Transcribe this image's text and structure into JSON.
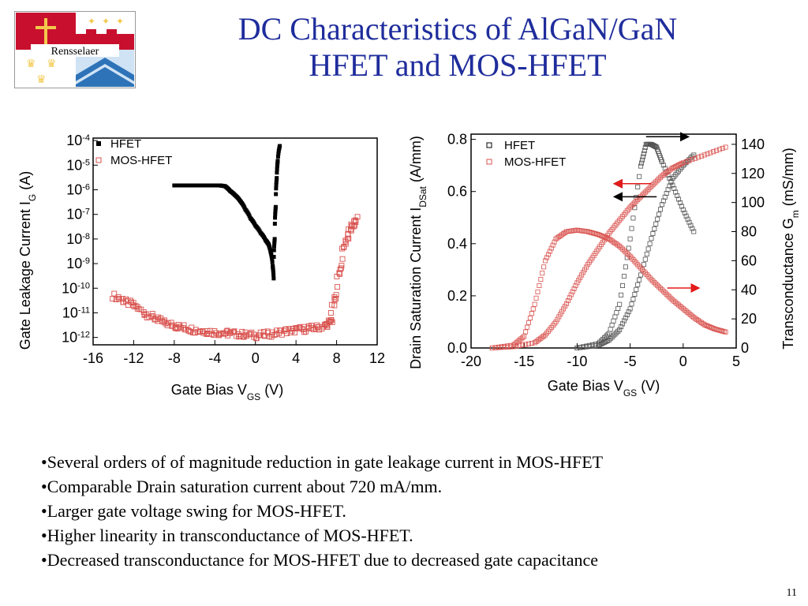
{
  "slide": {
    "title_line1": "DC Characteristics of AlGaN/GaN",
    "title_line2": "HFET and MOS-HFET",
    "logo_text": "Rensselaer",
    "bullets": [
      "•Several orders of of magnitude reduction in gate leakage current in MOS-HFET",
      "•Comparable Drain saturation current about 720 mA/mm.",
      "•Larger gate voltage swing for MOS-HFET.",
      "•Higher linearity in transconductance of MOS-HFET.",
      "•Decreased transconductance for MOS-HFET due to decreased gate capacitance"
    ],
    "page_number": "11",
    "colors": {
      "title": "#1f2d9c",
      "hfet": "#000000",
      "moshfet": "#d9534f",
      "arrow_red": "#e31b1b"
    }
  },
  "chart_data": [
    {
      "type": "scatter",
      "ylabel_parts": [
        "Gate Leakage Current    I",
        "G",
        "    (A)"
      ],
      "xlabel_parts": [
        "Gate   Bias  V",
        "GS",
        "     (V)"
      ],
      "yscale": "log",
      "xlim": [
        -16,
        12
      ],
      "ylim_exp": [
        -12.3,
        -3.9
      ],
      "xticks": [
        "-16",
        "-12",
        "-8",
        "-4",
        "0",
        "4",
        "8",
        "12"
      ],
      "xtick_values": [
        -16,
        -12,
        -8,
        -4,
        0,
        4,
        8,
        12
      ],
      "ytick_exps": [
        -4,
        -5,
        -6,
        -7,
        -8,
        -9,
        -10,
        -11,
        -12
      ],
      "ytick_base": "10",
      "legend": [
        "HFET",
        "MOS-HFET"
      ],
      "legend_position": "top-left",
      "series": [
        {
          "name": "HFET",
          "points": [
            [
              -8,
              1.5e-06
            ],
            [
              -7,
              1.5e-06
            ],
            [
              -6,
              1.5e-06
            ],
            [
              -5,
              1.5e-06
            ],
            [
              -4,
              1.5e-06
            ],
            [
              -3.5,
              1.5e-06
            ],
            [
              -3,
              1.4e-06
            ],
            [
              -2.5,
              9e-07
            ],
            [
              -2,
              6e-07
            ],
            [
              -1.5,
              3.5e-07
            ],
            [
              -1,
              1.6e-07
            ],
            [
              -0.5,
              7e-08
            ],
            [
              0,
              3.5e-08
            ],
            [
              0.5,
              1.8e-08
            ],
            [
              1,
              9e-09
            ],
            [
              1.3,
              6e-09
            ],
            [
              1.5,
              3e-09
            ],
            [
              1.7,
              8e-10
            ],
            [
              1.8,
              2.5e-10
            ],
            [
              1.9,
              1e-08
            ],
            [
              2,
              2e-07
            ],
            [
              2.1,
              3e-06
            ],
            [
              2.2,
              1.5e-05
            ],
            [
              2.4,
              6e-05
            ]
          ]
        },
        {
          "name": "MOS-HFET",
          "points": [
            [
              -14,
              5e-11
            ],
            [
              -13,
              3e-11
            ],
            [
              -12,
              2e-11
            ],
            [
              -11,
              1e-11
            ],
            [
              -10,
              6e-12
            ],
            [
              -9,
              4e-12
            ],
            [
              -8,
              3e-12
            ],
            [
              -7,
              2.5e-12
            ],
            [
              -6,
              2e-12
            ],
            [
              -5,
              1.8e-12
            ],
            [
              -4,
              1.6e-12
            ],
            [
              -3,
              1.5e-12
            ],
            [
              -2,
              1.4e-12
            ],
            [
              -1,
              1.3e-12
            ],
            [
              0,
              1.2e-12
            ],
            [
              1,
              1.3e-12
            ],
            [
              2,
              1.5e-12
            ],
            [
              3,
              1.8e-12
            ],
            [
              4,
              2e-12
            ],
            [
              5,
              2.2e-12
            ],
            [
              6,
              2.5e-12
            ],
            [
              7,
              3e-12
            ],
            [
              7.5,
              5e-12
            ],
            [
              8,
              5e-11
            ],
            [
              8.5,
              8e-10
            ],
            [
              9,
              1e-08
            ],
            [
              9.5,
              3e-08
            ],
            [
              10,
              6e-08
            ]
          ]
        }
      ]
    },
    {
      "type": "scatter",
      "ylabel_parts": [
        "Drain Saturation Current   I",
        "DSat",
        "   (A/mm)"
      ],
      "y2label_parts": [
        "Transconductance  G",
        "m",
        " (mS/mm)"
      ],
      "xlabel_parts": [
        "Gate Bias   V",
        "GS",
        "   (V)"
      ],
      "xlim": [
        -20,
        5
      ],
      "ylim": [
        0,
        0.82
      ],
      "y2lim": [
        0,
        147
      ],
      "xticks": [
        "-20",
        "-15",
        "-10",
        "-5",
        "0",
        "5"
      ],
      "xtick_values": [
        -20,
        -15,
        -10,
        -5,
        0,
        5
      ],
      "yticks": [
        "0.0",
        "0.2",
        "0.4",
        "0.6",
        "0.8"
      ],
      "ytick_values": [
        0,
        0.2,
        0.4,
        0.6,
        0.8
      ],
      "y2ticks": [
        "0",
        "20",
        "40",
        "60",
        "80",
        "100",
        "120",
        "140"
      ],
      "y2tick_values": [
        0,
        20,
        40,
        60,
        80,
        100,
        120,
        140
      ],
      "legend": [
        "HFET",
        "MOS-HFET"
      ],
      "legend_position": "top-left",
      "arrows": [
        {
          "from": [
            -3.5,
            0.81
          ],
          "to": [
            0.5,
            0.81
          ],
          "color": "black"
        },
        {
          "from": [
            -3.5,
            0.63
          ],
          "to": [
            -6.5,
            0.63
          ],
          "color": "black"
        },
        {
          "from": [
            -3,
            0.63
          ],
          "to": [
            -6.5,
            0.63
          ],
          "color": "red"
        },
        {
          "from": [
            -2.5,
            0.58
          ],
          "to": [
            -6.5,
            0.58
          ],
          "color": "black"
        },
        {
          "from": [
            -1.5,
            0.23
          ],
          "to": [
            1.5,
            0.23
          ],
          "color": "red"
        }
      ],
      "series": [
        {
          "name": "HFET",
          "axis": "left",
          "points": [
            [
              -10,
              0
            ],
            [
              -8,
              0.01
            ],
            [
              -7,
              0.03
            ],
            [
              -6,
              0.07
            ],
            [
              -5,
              0.15
            ],
            [
              -4,
              0.28
            ],
            [
              -3,
              0.42
            ],
            [
              -2,
              0.55
            ],
            [
              -1,
              0.65
            ],
            [
              0,
              0.7
            ],
            [
              1,
              0.74
            ]
          ]
        },
        {
          "name": "HFET",
          "axis": "right",
          "points": [
            [
              -10,
              0
            ],
            [
              -8,
              3
            ],
            [
              -7,
              10
            ],
            [
              -6,
              30
            ],
            [
              -5,
              75
            ],
            [
              -4,
              125
            ],
            [
              -3.5,
              140
            ],
            [
              -3,
              140
            ],
            [
              -2.5,
              138
            ],
            [
              -2,
              128
            ],
            [
              -1,
              112
            ],
            [
              0,
              95
            ],
            [
              1,
              80
            ]
          ]
        },
        {
          "name": "MOS-HFET",
          "axis": "left",
          "points": [
            [
              -18,
              0
            ],
            [
              -16,
              0.005
            ],
            [
              -14,
              0.02
            ],
            [
              -13,
              0.05
            ],
            [
              -12,
              0.1
            ],
            [
              -11,
              0.17
            ],
            [
              -10,
              0.25
            ],
            [
              -9,
              0.32
            ],
            [
              -8,
              0.38
            ],
            [
              -7,
              0.44
            ],
            [
              -6,
              0.49
            ],
            [
              -5,
              0.54
            ],
            [
              -4,
              0.58
            ],
            [
              -3,
              0.62
            ],
            [
              -2,
              0.66
            ],
            [
              -1,
              0.69
            ],
            [
              0,
              0.71
            ],
            [
              2,
              0.74
            ],
            [
              4,
              0.77
            ]
          ]
        },
        {
          "name": "MOS-HFET",
          "axis": "right",
          "points": [
            [
              -18,
              0
            ],
            [
              -16,
              2
            ],
            [
              -15,
              8
            ],
            [
              -14,
              30
            ],
            [
              -13,
              60
            ],
            [
              -12,
              75
            ],
            [
              -11,
              80
            ],
            [
              -10,
              81
            ],
            [
              -9,
              80
            ],
            [
              -8,
              78
            ],
            [
              -7,
              75
            ],
            [
              -6,
              70
            ],
            [
              -5,
              63
            ],
            [
              -4,
              55
            ],
            [
              -3,
              47
            ],
            [
              -2,
              40
            ],
            [
              -1,
              33
            ],
            [
              0,
              27
            ],
            [
              1,
              21
            ],
            [
              2,
              16
            ],
            [
              3,
              13
            ],
            [
              4,
              11
            ]
          ]
        }
      ]
    }
  ]
}
